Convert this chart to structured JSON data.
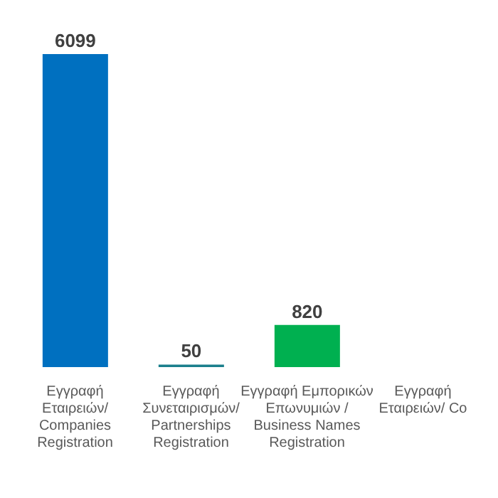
{
  "chart_data": {
    "type": "bar",
    "categories": [
      "Εγγραφή Εταιρειών/ Companies Registration",
      "Εγγραφή Συνεταιρισμών/ Partnerships Registration",
      "Εγγραφή Εμπορικών Επωνυμιών / Business Names Registration",
      "Εγγραφή Εταιρειών/ Co"
    ],
    "values": [
      6099,
      50,
      820,
      null
    ],
    "colors": [
      "#0070c0",
      "#1b7f8c",
      "#00b050",
      "#7f7f7f"
    ],
    "data_labels": true
  }
}
